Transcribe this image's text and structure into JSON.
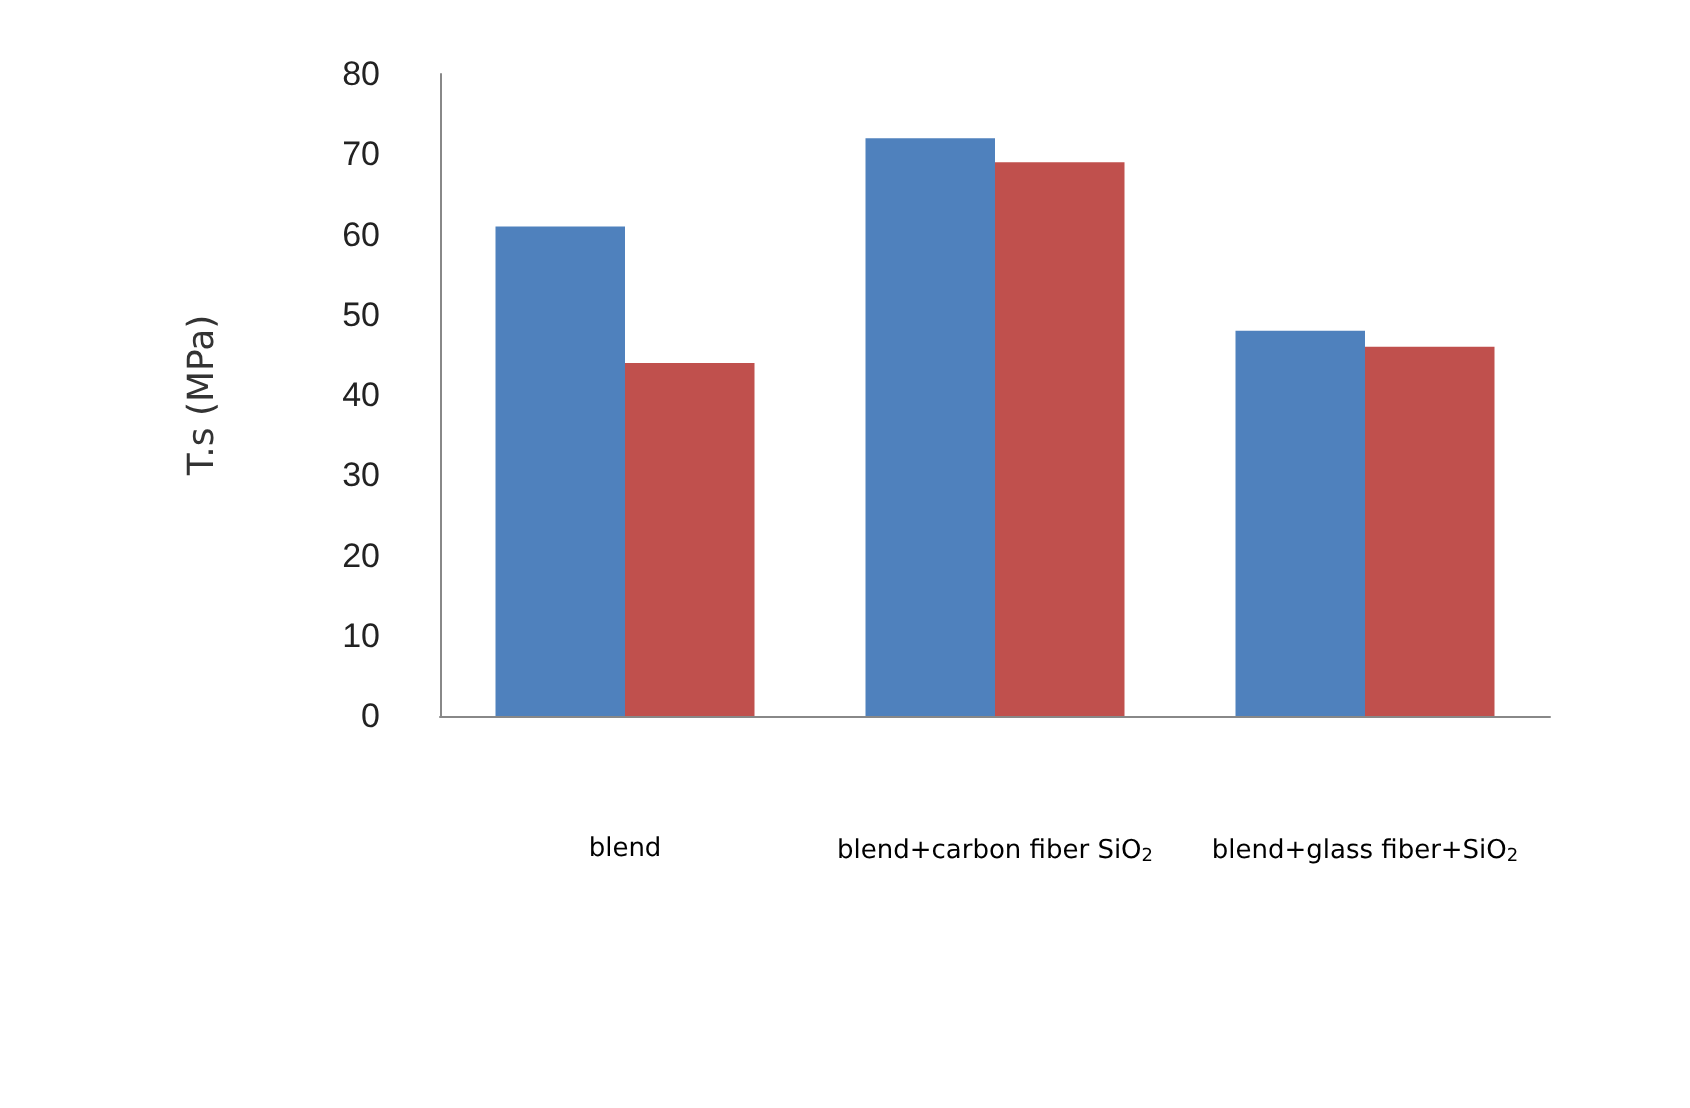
{
  "chart_data": {
    "type": "bar",
    "ylabel": "T.s (MPa)",
    "categories": [
      "blend",
      "blend+carbon fiber SiO$_{2}$",
      "blend+glass fiber+SiO$_{2}$"
    ],
    "series": [
      {
        "color": "#4f81bd",
        "values": [
          61,
          72,
          48
        ]
      },
      {
        "color": "#c0504d",
        "values": [
          44,
          69,
          46
        ]
      }
    ],
    "ylim": [
      0,
      80
    ],
    "yticks": [
      0,
      10,
      20,
      30,
      40,
      50,
      60,
      70,
      80
    ],
    "grid": false
  }
}
